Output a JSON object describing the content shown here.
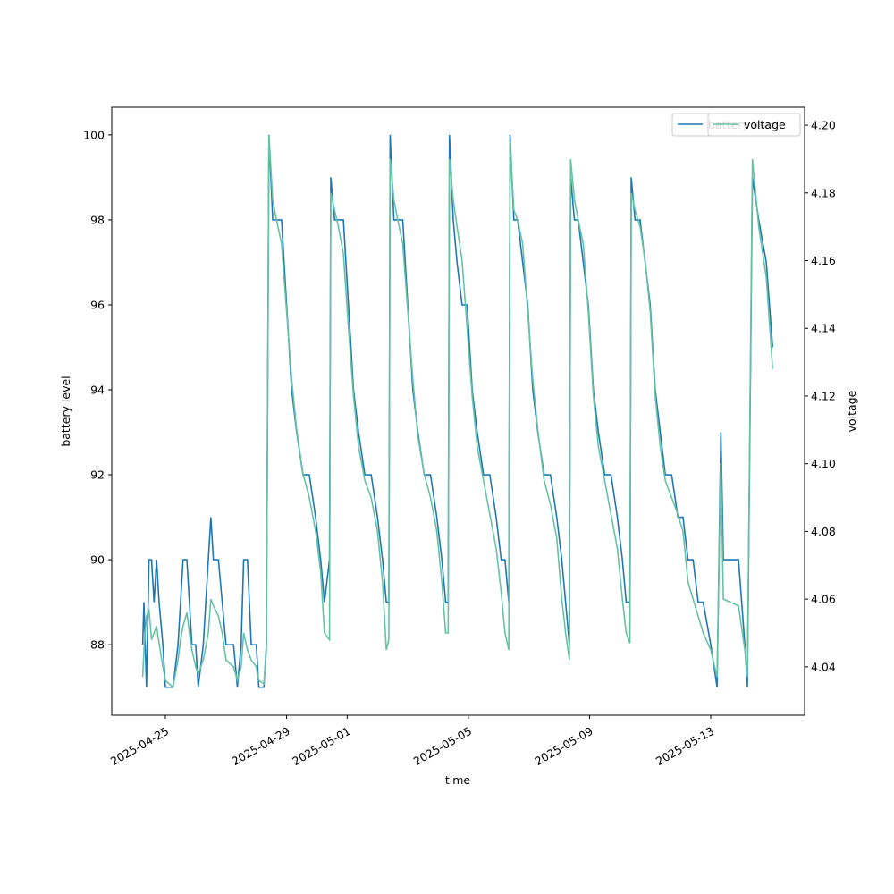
{
  "chart_data": {
    "type": "line",
    "x_label": "time",
    "y_label": "battery level",
    "y2_label": "voltage",
    "xlim": [
      "2025-04-23 05:30",
      "2025-05-16 02:20"
    ],
    "xticks": [
      "2025-04-25",
      "2025-04-29",
      "2025-05-01",
      "2025-05-05",
      "2025-05-09",
      "2025-05-13"
    ],
    "ylim": [
      86.34,
      100.65
    ],
    "yticks": [
      88,
      90,
      92,
      94,
      96,
      98,
      100
    ],
    "y2lim": [
      4.0257,
      4.2053
    ],
    "y2ticks": [
      4.04,
      4.06,
      4.08,
      {
        "value": 4.1,
        "label": "4.10"
      },
      4.12,
      4.14,
      4.16,
      4.18,
      {
        "value": 4.2,
        "label": "4.20"
      }
    ],
    "legend": "upper right",
    "x": [
      "2025-04-24 06:00",
      "2025-04-24 07:00",
      "2025-04-24 09:00",
      "2025-04-24 11:00",
      "2025-04-24 13:00",
      "2025-04-24 15:00",
      "2025-04-24 17:00",
      "2025-04-24 19:00",
      "2025-04-24 22:00",
      "2025-04-25 00:00",
      "2025-04-25 06:00",
      "2025-04-25 10:00",
      "2025-04-25 12:00",
      "2025-04-25 14:00",
      "2025-04-25 17:00",
      "2025-04-25 19:00",
      "2025-04-25 21:00",
      "2025-04-26 00:00",
      "2025-04-26 02:00",
      "2025-04-26 06:00",
      "2025-04-26 10:00",
      "2025-04-26 12:00",
      "2025-04-26 14:00",
      "2025-04-26 18:00",
      "2025-04-26 21:00",
      "2025-04-27 00:00",
      "2025-04-27 06:00",
      "2025-04-27 09:00",
      "2025-04-27 12:00",
      "2025-04-27 14:00",
      "2025-04-27 17:00",
      "2025-04-27 20:00",
      "2025-04-28 00:00",
      "2025-04-28 02:00",
      "2025-04-28 06:00",
      "2025-04-28 08:00",
      "2025-04-28 10:00",
      "2025-04-28 13:00",
      "2025-04-28 16:00",
      "2025-04-28 20:00",
      "2025-04-29 00:00",
      "2025-04-29 04:00",
      "2025-04-29 08:00",
      "2025-04-29 13:00",
      "2025-04-29 18:00",
      "2025-04-29 23:00",
      "2025-04-30 03:00",
      "2025-04-30 06:00",
      "2025-04-30 10:00",
      "2025-04-30 11:00",
      "2025-04-30 14:00",
      "2025-04-30 17:00",
      "2025-04-30 21:00",
      "2025-05-01 01:00",
      "2025-05-01 05:00",
      "2025-05-01 09:00",
      "2025-05-01 14:00",
      "2025-05-01 19:00",
      "2025-05-02 00:00",
      "2025-05-02 04:00",
      "2025-05-02 07:00",
      "2025-05-02 09:00",
      "2025-05-02 10:00",
      "2025-05-02 13:00",
      "2025-05-02 16:00",
      "2025-05-02 20:00",
      "2025-05-03 00:00",
      "2025-05-03 04:00",
      "2025-05-03 08:00",
      "2025-05-03 13:00",
      "2025-05-03 18:00",
      "2025-05-03 23:00",
      "2025-05-04 03:00",
      "2025-05-04 06:00",
      "2025-05-04 08:00",
      "2025-05-04 09:00",
      "2025-05-04 12:00",
      "2025-05-04 15:00",
      "2025-05-04 19:00",
      "2025-05-04 23:00",
      "2025-05-05 03:00",
      "2025-05-05 07:00",
      "2025-05-05 12:00",
      "2025-05-05 17:00",
      "2025-05-05 22:00",
      "2025-05-06 02:00",
      "2025-05-06 05:00",
      "2025-05-06 08:00",
      "2025-05-06 09:00",
      "2025-05-06 12:00",
      "2025-05-06 15:00",
      "2025-05-06 19:00",
      "2025-05-06 23:00",
      "2025-05-07 03:00",
      "2025-05-07 07:00",
      "2025-05-07 12:00",
      "2025-05-07 17:00",
      "2025-05-07 22:00",
      "2025-05-08 02:00",
      "2025-05-08 05:00",
      "2025-05-08 08:00",
      "2025-05-08 09:00",
      "2025-05-08 12:00",
      "2025-05-08 15:00",
      "2025-05-08 19:00",
      "2025-05-08 23:00",
      "2025-05-09 03:00",
      "2025-05-09 07:00",
      "2025-05-09 12:00",
      "2025-05-09 17:00",
      "2025-05-09 22:00",
      "2025-05-10 02:00",
      "2025-05-10 05:00",
      "2025-05-10 08:00",
      "2025-05-10 09:00",
      "2025-05-10 12:00",
      "2025-05-10 16:00",
      "2025-05-10 20:00",
      "2025-05-11 00:00",
      "2025-05-11 04:00",
      "2025-05-11 08:00",
      "2025-05-11 12:00",
      "2025-05-11 17:00",
      "2025-05-11 22:00",
      "2025-05-12 02:00",
      "2025-05-12 06:00",
      "2025-05-12 10:00",
      "2025-05-12 14:00",
      "2025-05-12 18:00",
      "2025-05-13 00:00",
      "2025-05-13 05:00",
      "2025-05-13 08:00",
      "2025-05-13 10:00",
      "2025-05-13 22:00",
      "2025-05-14 03:00",
      "2025-05-14 05:00",
      "2025-05-14 09:00",
      "2025-05-14 14:00",
      "2025-05-14 20:00",
      "2025-05-15 01:00"
    ],
    "series": [
      {
        "name": "battery level",
        "color": "#1f77b4",
        "axis": "y",
        "values": [
          88,
          89,
          87,
          90,
          90,
          89,
          90,
          89,
          88,
          87,
          87,
          88,
          89,
          90,
          90,
          89,
          88,
          88,
          87,
          88,
          90,
          91,
          90,
          90,
          89,
          88,
          88,
          87,
          88,
          90,
          90,
          88,
          88,
          87,
          87,
          88,
          100,
          98,
          98,
          98,
          96,
          94,
          93,
          92,
          92,
          91,
          90,
          89,
          90,
          99,
          98,
          98,
          98,
          96,
          94,
          93,
          92,
          92,
          91,
          90,
          89,
          89,
          100,
          98,
          98,
          98,
          96,
          94,
          93,
          92,
          92,
          91,
          90,
          89,
          89,
          100,
          98,
          97,
          96,
          96,
          94,
          93,
          92,
          92,
          91,
          90,
          90,
          89,
          100,
          98,
          98,
          97,
          96,
          94,
          93,
          92,
          92,
          91,
          90,
          89,
          88,
          99,
          98,
          98,
          97,
          96,
          94,
          93,
          92,
          92,
          91,
          90,
          89,
          89,
          99,
          98,
          98,
          97,
          96,
          94,
          93,
          92,
          92,
          91,
          91,
          90,
          90,
          89,
          89,
          88,
          87,
          93,
          90,
          90,
          88,
          87,
          99,
          98,
          97,
          95
        ]
      },
      {
        "name": "voltage",
        "color": "#66c2a5",
        "axis": "y2",
        "values": [
          4.037,
          4.045,
          4.055,
          4.057,
          4.048,
          4.05,
          4.052,
          4.047,
          4.04,
          4.036,
          4.034,
          4.042,
          4.048,
          4.052,
          4.056,
          4.05,
          4.045,
          4.04,
          4.038,
          4.042,
          4.05,
          4.06,
          4.058,
          4.055,
          4.05,
          4.042,
          4.04,
          4.036,
          4.04,
          4.05,
          4.045,
          4.042,
          4.04,
          4.036,
          4.035,
          4.045,
          4.197,
          4.178,
          4.172,
          4.165,
          4.145,
          4.125,
          4.11,
          4.097,
          4.09,
          4.08,
          4.068,
          4.05,
          4.048,
          4.18,
          4.175,
          4.17,
          4.162,
          4.14,
          4.12,
          4.105,
          4.095,
          4.09,
          4.08,
          4.065,
          4.045,
          4.048,
          4.19,
          4.178,
          4.172,
          4.165,
          4.145,
          4.125,
          4.108,
          4.097,
          4.09,
          4.08,
          4.065,
          4.05,
          4.05,
          4.19,
          4.178,
          4.17,
          4.16,
          4.14,
          4.12,
          4.105,
          4.095,
          4.085,
          4.075,
          4.062,
          4.05,
          4.045,
          4.195,
          4.175,
          4.172,
          4.165,
          4.145,
          4.125,
          4.11,
          4.095,
          4.088,
          4.078,
          4.06,
          4.05,
          4.042,
          4.19,
          4.178,
          4.172,
          4.165,
          4.145,
          4.12,
          4.105,
          4.095,
          4.085,
          4.075,
          4.06,
          4.05,
          4.047,
          4.18,
          4.175,
          4.17,
          4.16,
          4.145,
          4.12,
          4.105,
          4.095,
          4.09,
          4.085,
          4.08,
          4.065,
          4.06,
          4.055,
          4.05,
          4.045,
          4.037,
          4.1,
          4.06,
          4.058,
          4.045,
          4.037,
          4.19,
          4.17,
          4.155,
          4.128
        ]
      }
    ]
  }
}
